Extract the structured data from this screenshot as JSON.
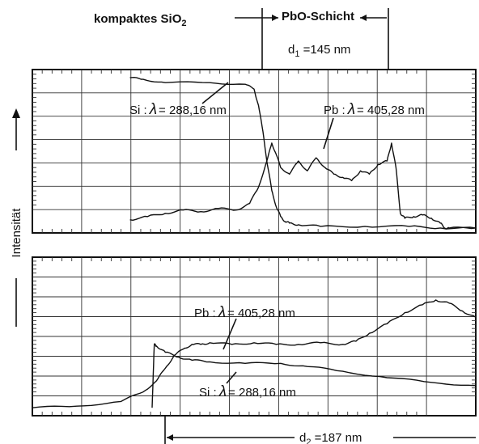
{
  "chart_data": [
    {
      "type": "line",
      "panel": "top",
      "title": "",
      "xlabel": "",
      "ylabel": "Intensität",
      "x_range": [
        0,
        100
      ],
      "y_range": [
        0,
        100
      ],
      "header_labels": {
        "left": "kompaktes SiO",
        "left_sub": "2",
        "right": "PbO-Schicht"
      },
      "thickness_label": {
        "text": "d",
        "sub": "1",
        "value": " =145 nm"
      },
      "series": [
        {
          "name": "Si: λ = 288,16 nm",
          "label_text": "Si :",
          "label_lambda": "λ",
          "label_value": "= 288,16 nm",
          "x": [
            22,
            25,
            30,
            40,
            48,
            50,
            51,
            52,
            53,
            54,
            55,
            56,
            57,
            58,
            60,
            65,
            75,
            85,
            92,
            100
          ],
          "y": [
            95,
            94,
            92,
            92,
            91,
            88,
            78,
            62,
            42,
            26,
            16,
            10,
            7,
            6,
            5,
            4,
            4,
            4,
            3,
            3
          ]
        },
        {
          "name": "Pb: λ = 405,28 nm",
          "label_text": "Pb :",
          "label_lambda": "λ",
          "label_value": "= 405,28 nm",
          "x": [
            22,
            26,
            30,
            34,
            38,
            42,
            46,
            49,
            51,
            53,
            54,
            55,
            56,
            58,
            60,
            62,
            64,
            66,
            68,
            70,
            72,
            74,
            76,
            78,
            80,
            81,
            82,
            83,
            84,
            86,
            88,
            90,
            92,
            93,
            94,
            100
          ],
          "y": [
            8,
            10,
            12,
            14,
            13,
            15,
            14,
            18,
            28,
            45,
            55,
            48,
            40,
            36,
            44,
            38,
            46,
            40,
            36,
            34,
            32,
            38,
            36,
            42,
            44,
            55,
            40,
            12,
            9,
            10,
            11,
            9,
            6,
            3,
            3,
            3
          ]
        }
      ]
    },
    {
      "type": "line",
      "panel": "bottom",
      "title": "",
      "xlabel": "",
      "ylabel": "Intensität",
      "x_range": [
        0,
        100
      ],
      "y_range": [
        0,
        100
      ],
      "thickness_label": {
        "text": "d",
        "sub": "2",
        "value": " =187 nm"
      },
      "series": [
        {
          "name": "Pb: λ = 405,28 nm",
          "label_text": "Pb :",
          "label_lambda": "λ",
          "label_value": "= 405,28 nm",
          "x": [
            0,
            10,
            20,
            25,
            28,
            30,
            32,
            34,
            36,
            38,
            40,
            45,
            50,
            55,
            60,
            65,
            70,
            73,
            76,
            80,
            84,
            88,
            91,
            94,
            97,
            100
          ],
          "y": [
            5,
            6,
            9,
            15,
            22,
            30,
            38,
            42,
            45,
            45,
            46,
            45,
            46,
            45,
            45,
            46,
            45,
            47,
            52,
            58,
            65,
            70,
            73,
            71,
            66,
            62
          ]
        },
        {
          "name": "Si: λ = 288,16 nm",
          "label_text": "Si :",
          "label_lambda": "λ",
          "label_value": "= 288,16 nm",
          "x": [
            27,
            27.5,
            28,
            30,
            33,
            36,
            40,
            48,
            56,
            62,
            70,
            80,
            90,
            100
          ],
          "y": [
            5,
            45,
            44,
            40,
            37,
            35,
            34,
            33,
            33,
            31,
            28,
            24,
            21,
            19
          ]
        }
      ]
    }
  ]
}
